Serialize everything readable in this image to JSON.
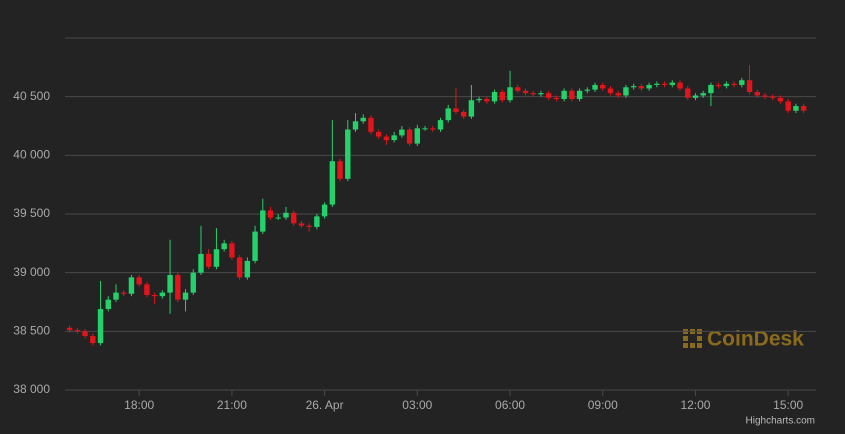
{
  "chart_data": {
    "type": "candlestick",
    "x": [
      15.75,
      16,
      16.25,
      16.5,
      16.75,
      17,
      17.25,
      17.5,
      17.75,
      18,
      18.25,
      18.5,
      18.75,
      19,
      19.25,
      19.5,
      19.75,
      20,
      20.25,
      20.5,
      20.75,
      21,
      21.25,
      21.5,
      21.75,
      22,
      22.25,
      22.5,
      22.75,
      23,
      23.25,
      23.5,
      23.75,
      24,
      24.25,
      24.5,
      24.75,
      25,
      25.25,
      25.5,
      25.75,
      26,
      26.25,
      26.5,
      26.75,
      27,
      27.25,
      27.5,
      27.75,
      28,
      28.25,
      28.5,
      28.75,
      29,
      29.25,
      29.5,
      29.75,
      30,
      30.25,
      30.5,
      30.75,
      31,
      31.25,
      31.5,
      31.75,
      32,
      32.25,
      32.5,
      32.75,
      33,
      33.25,
      33.5,
      33.75,
      34,
      34.25,
      34.5,
      34.75,
      35,
      35.25,
      35.5,
      35.75,
      36,
      36.25,
      36.5,
      36.75,
      37,
      37.25,
      37.5,
      37.75,
      38,
      38.25,
      38.5,
      38.75,
      39,
      39.25,
      39.5
    ],
    "open": [
      38530,
      38510,
      38500,
      38460,
      38400,
      38690,
      38770,
      38830,
      38820,
      38960,
      38900,
      38810,
      38800,
      38830,
      38980,
      38770,
      38830,
      39000,
      39160,
      39050,
      39200,
      39250,
      39130,
      38960,
      39100,
      39350,
      39530,
      39470,
      39470,
      39510,
      39420,
      39400,
      39390,
      39480,
      39580,
      39950,
      39800,
      40220,
      40290,
      40320,
      40200,
      40160,
      40130,
      40170,
      40220,
      40100,
      40230,
      40230,
      40220,
      40300,
      40400,
      40370,
      40330,
      40470,
      40480,
      40460,
      40540,
      40470,
      40580,
      40550,
      40530,
      40520,
      40530,
      40490,
      40480,
      40550,
      40480,
      40550,
      40560,
      40600,
      40570,
      40530,
      40510,
      40580,
      40590,
      40570,
      40600,
      40610,
      40600,
      40620,
      40570,
      40490,
      40510,
      40530,
      40600,
      40590,
      40610,
      40600,
      40640,
      40540,
      40510,
      40500,
      40490,
      40460,
      40380,
      40420
    ],
    "high": [
      38550,
      38530,
      38520,
      38480,
      38930,
      38800,
      38900,
      38850,
      38980,
      38980,
      38920,
      38830,
      38850,
      39280,
      39000,
      38860,
      39030,
      39400,
      39200,
      39380,
      39280,
      39270,
      39150,
      39130,
      39400,
      39630,
      39560,
      39500,
      39560,
      39530,
      39440,
      39420,
      39500,
      39600,
      40300,
      39970,
      40300,
      40360,
      40350,
      40340,
      40220,
      40180,
      40200,
      40250,
      40240,
      40260,
      40250,
      40250,
      40320,
      40430,
      40570,
      40390,
      40600,
      40500,
      40500,
      40560,
      40560,
      40720,
      40600,
      40570,
      40550,
      40550,
      40550,
      40510,
      40570,
      40570,
      40570,
      40580,
      40620,
      40620,
      40590,
      40550,
      40600,
      40610,
      40610,
      40620,
      40630,
      40630,
      40640,
      40640,
      40590,
      40530,
      40550,
      40620,
      40620,
      40630,
      40630,
      40660,
      40770,
      40560,
      40530,
      40520,
      40510,
      40480,
      40440,
      40440
    ],
    "low": [
      38490,
      38480,
      38440,
      38380,
      38380,
      38670,
      38750,
      38800,
      38800,
      38880,
      38790,
      38730,
      38780,
      38650,
      38750,
      38670,
      38810,
      38980,
      39030,
      39030,
      39180,
      39110,
      38940,
      38940,
      39080,
      39330,
      39450,
      39450,
      39450,
      39400,
      39380,
      39350,
      39370,
      39460,
      39560,
      39780,
      39780,
      40200,
      40270,
      40180,
      40140,
      40090,
      40110,
      40150,
      40080,
      40080,
      40210,
      40200,
      40200,
      40280,
      40350,
      40310,
      40310,
      40450,
      40440,
      40440,
      40450,
      40450,
      40530,
      40510,
      40500,
      40500,
      40470,
      40460,
      40460,
      40460,
      40460,
      40530,
      40540,
      40550,
      40510,
      40490,
      40490,
      40560,
      40550,
      40550,
      40580,
      40580,
      40580,
      40550,
      40470,
      40470,
      40490,
      40420,
      40570,
      40570,
      40580,
      40580,
      40520,
      40490,
      40480,
      40470,
      40440,
      40360,
      40360,
      40360
    ],
    "close": [
      38510,
      38500,
      38460,
      38400,
      38690,
      38770,
      38830,
      38820,
      38960,
      38900,
      38810,
      38800,
      38830,
      38980,
      38770,
      38830,
      39000,
      39160,
      39050,
      39200,
      39250,
      39130,
      38960,
      39100,
      39350,
      39530,
      39470,
      39470,
      39510,
      39420,
      39400,
      39390,
      39480,
      39580,
      39950,
      39800,
      40220,
      40290,
      40320,
      40200,
      40160,
      40130,
      40170,
      40220,
      40100,
      40230,
      40230,
      40220,
      40300,
      40400,
      40370,
      40330,
      40470,
      40480,
      40460,
      40540,
      40470,
      40580,
      40550,
      40530,
      40520,
      40530,
      40490,
      40480,
      40550,
      40480,
      40550,
      40560,
      40600,
      40570,
      40530,
      40510,
      40580,
      40590,
      40570,
      40600,
      40610,
      40600,
      40620,
      40570,
      40490,
      40510,
      40530,
      40600,
      40590,
      40610,
      40600,
      40640,
      40540,
      40510,
      40500,
      40490,
      40460,
      40380,
      40420,
      40380
    ],
    "up_color": "#25d16b",
    "down_color": "#e3141b",
    "ylim": [
      38000,
      41000
    ],
    "yticks": [
      {
        "value": 38000,
        "label": "38 000"
      },
      {
        "value": 38500,
        "label": "38 500"
      },
      {
        "value": 39000,
        "label": "39 000"
      },
      {
        "value": 39500,
        "label": "39 500"
      },
      {
        "value": 40000,
        "label": "40 000"
      },
      {
        "value": 40500,
        "label": "40 500"
      }
    ],
    "xlim": [
      15.6,
      39.9
    ],
    "xticks": [
      {
        "value": 18,
        "label": "18:00"
      },
      {
        "value": 21,
        "label": "21:00"
      },
      {
        "value": 24,
        "label": "26. Apr"
      },
      {
        "value": 27,
        "label": "03:00"
      },
      {
        "value": 30,
        "label": "06:00"
      },
      {
        "value": 33,
        "label": "09:00"
      },
      {
        "value": 36,
        "label": "12:00"
      },
      {
        "value": 39,
        "label": "15:00"
      }
    ],
    "grid": true,
    "watermark": "CoinDesk",
    "credits": "Highcharts.com"
  }
}
